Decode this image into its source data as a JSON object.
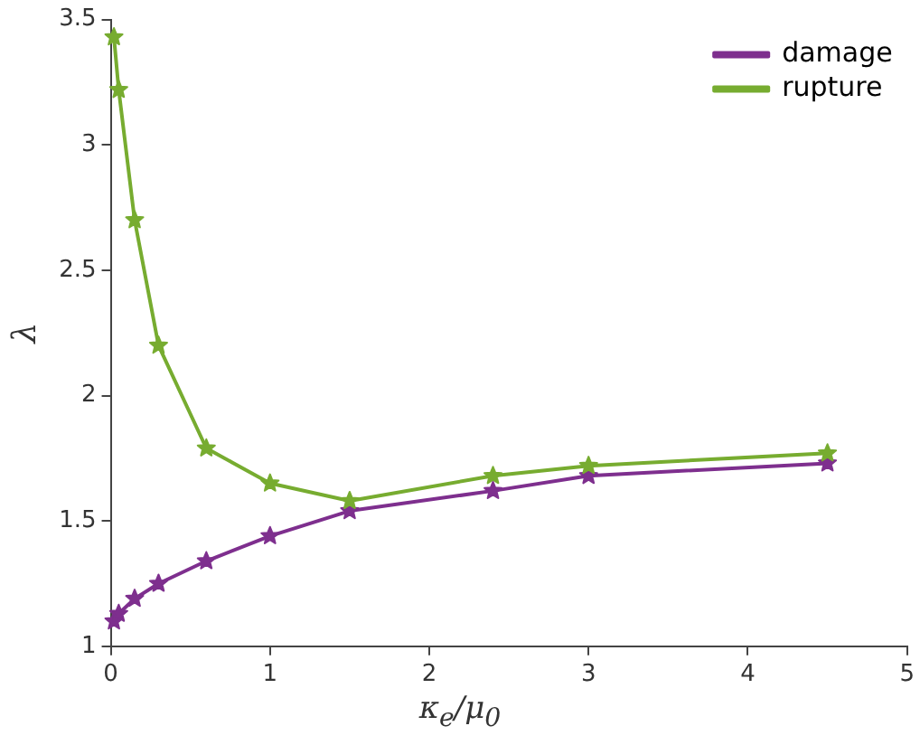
{
  "chart_data": {
    "type": "line",
    "xlabel": "κ$_{e}$/μ$_{0}$",
    "ylabel": "λ",
    "x": [
      0.02,
      0.05,
      0.15,
      0.3,
      0.6,
      1,
      1.5,
      2.4,
      3,
      4.5
    ],
    "series": [
      {
        "name": "damage",
        "color": "#7e2f8e",
        "values": [
          1.1,
          1.13,
          1.19,
          1.25,
          1.34,
          1.44,
          1.54,
          1.62,
          1.68,
          1.73
        ]
      },
      {
        "name": "rupture",
        "color": "#77ac30",
        "values": [
          3.43,
          3.22,
          2.7,
          2.2,
          1.79,
          1.65,
          1.58,
          1.68,
          1.72,
          1.77
        ]
      }
    ],
    "xlim": [
      0,
      5
    ],
    "xticks": [
      0,
      1,
      2,
      3,
      4,
      5
    ],
    "ylim": [
      1,
      3.5
    ],
    "yticks": [
      1,
      1.5,
      2,
      2.5,
      3,
      3.5
    ],
    "grid": false,
    "legend": "top right",
    "marker": "star",
    "line_style": "solid"
  }
}
